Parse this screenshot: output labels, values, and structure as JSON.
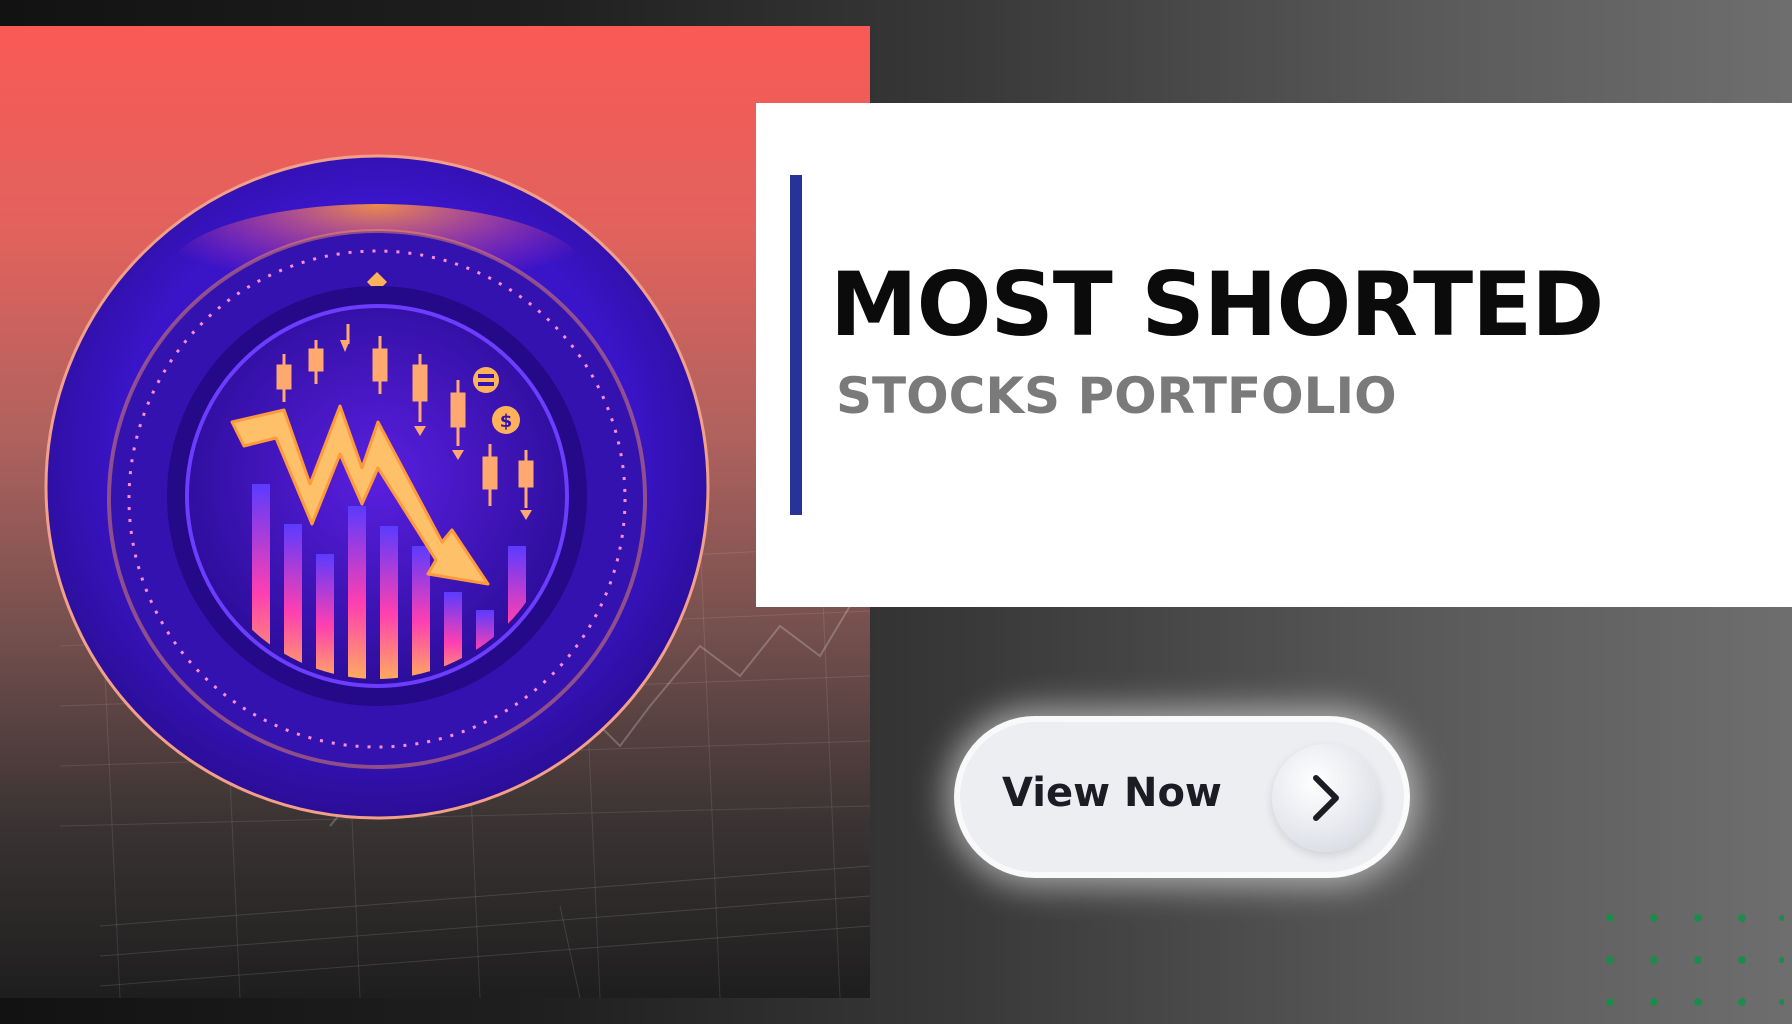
{
  "title": {
    "main": "MOST SHORTED",
    "sub": "STOCKS PORTFOLIO"
  },
  "cta": {
    "label": "View Now",
    "icon": "chevron-right-icon"
  },
  "hero": {
    "icon": "falling-stock-chart-emblem"
  },
  "colors": {
    "accent": "#28339a",
    "panel_top": "#fa5a56",
    "emblem_purple": "#4a18d6",
    "arrow_orange": "#ffb25a",
    "dots": "#1f8a4c"
  }
}
